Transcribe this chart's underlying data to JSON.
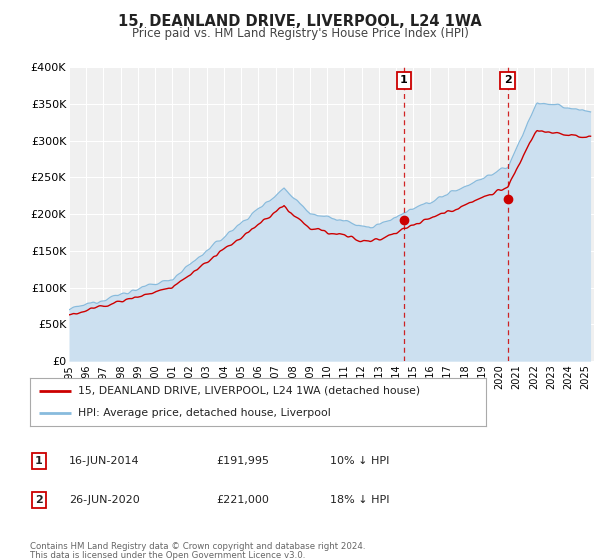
{
  "title": "15, DEANLAND DRIVE, LIVERPOOL, L24 1WA",
  "subtitle": "Price paid vs. HM Land Registry's House Price Index (HPI)",
  "ylim": [
    0,
    400000
  ],
  "xlim_start": 1995.0,
  "xlim_end": 2025.5,
  "yticks": [
    0,
    50000,
    100000,
    150000,
    200000,
    250000,
    300000,
    350000,
    400000
  ],
  "ytick_labels": [
    "£0",
    "£50K",
    "£100K",
    "£150K",
    "£200K",
    "£250K",
    "£300K",
    "£350K",
    "£400K"
  ],
  "xticks": [
    1995,
    1996,
    1997,
    1998,
    1999,
    2000,
    2001,
    2002,
    2003,
    2004,
    2005,
    2006,
    2007,
    2008,
    2009,
    2010,
    2011,
    2012,
    2013,
    2014,
    2015,
    2016,
    2017,
    2018,
    2019,
    2020,
    2021,
    2022,
    2023,
    2024,
    2025
  ],
  "property_color": "#cc0000",
  "hpi_color": "#88bbdd",
  "hpi_fill_color": "#cce0f0",
  "vline_color": "#cc0000",
  "sale1_x": 2014.46,
  "sale1_y": 191995,
  "sale1_label": "1",
  "sale1_date": "16-JUN-2014",
  "sale1_price": "£191,995",
  "sale1_hpi": "10% ↓ HPI",
  "sale2_x": 2020.48,
  "sale2_y": 221000,
  "sale2_label": "2",
  "sale2_date": "26-JUN-2020",
  "sale2_price": "£221,000",
  "sale2_hpi": "18% ↓ HPI",
  "legend_property": "15, DEANLAND DRIVE, LIVERPOOL, L24 1WA (detached house)",
  "legend_hpi": "HPI: Average price, detached house, Liverpool",
  "footnote_line1": "Contains HM Land Registry data © Crown copyright and database right 2024.",
  "footnote_line2": "This data is licensed under the Open Government Licence v3.0.",
  "background_color": "#ffffff",
  "plot_bg_color": "#f0f0f0"
}
